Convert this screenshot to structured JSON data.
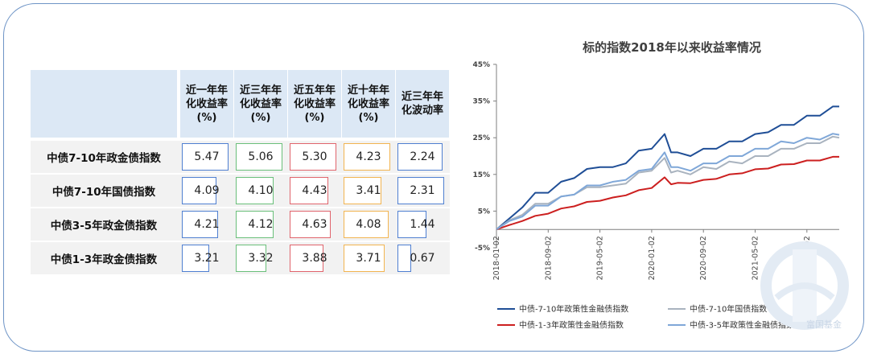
{
  "table": {
    "headers": [
      "近一年年\n化收益率\n(%)",
      "近三年年\n化收益率\n(%)",
      "近五年年\n化收益率\n(%)",
      "近十年年\n化收益率\n(%)",
      "近三年年\n化波动率"
    ],
    "column_colors": [
      "#4f7fd1",
      "#6abf7a",
      "#e0646c",
      "#f2b450",
      "#4f7fd1"
    ],
    "rows": [
      {
        "name": "中债7-10年政金债指数",
        "values": [
          "5.47",
          "5.06",
          "5.30",
          "4.23",
          "2.24"
        ]
      },
      {
        "name": "中债7-10年国债指数",
        "values": [
          "4.09",
          "4.10",
          "4.43",
          "3.41",
          "2.31"
        ]
      },
      {
        "name": "中债3-5年政金债指数",
        "values": [
          "4.21",
          "4.12",
          "4.63",
          "4.08",
          "1.44"
        ]
      },
      {
        "name": "中债1-3年政金债指数",
        "values": [
          "3.21",
          "3.32",
          "3.88",
          "3.71",
          "0.67"
        ]
      }
    ]
  },
  "chart_data": {
    "type": "line",
    "title": "标的指数2018年以来收益率情况",
    "y_ticks": [
      "-5%",
      "5%",
      "15%",
      "25%",
      "35%",
      "45%"
    ],
    "ylim": [
      -5,
      45
    ],
    "x_ticks": [
      "2018-01-02",
      "2018-09-02",
      "2019-05-02",
      "2020-01-02",
      "2020-09-02",
      "2021-05-02",
      "2022-01-02"
    ],
    "x_tick_months": [
      0,
      8,
      16,
      24,
      32,
      40,
      48
    ],
    "x_end_month": 53,
    "grid": false,
    "legend_position": "bottom",
    "series": [
      {
        "name": "中债-7-10年政策性金融债指数",
        "color": "#1f4e96",
        "x_months": [
          0,
          2,
          4,
          6,
          8,
          10,
          12,
          14,
          16,
          18,
          20,
          22,
          24,
          26,
          27,
          28,
          30,
          32,
          34,
          36,
          38,
          40,
          42,
          44,
          46,
          48,
          50,
          52,
          53
        ],
        "values": [
          0,
          2.5,
          6.5,
          9.5,
          10.5,
          12.5,
          14.5,
          16,
          17.5,
          16.5,
          18.5,
          21,
          22.5,
          25.5,
          21.5,
          20.5,
          20.5,
          21.5,
          22.5,
          23.5,
          24.5,
          25.5,
          27,
          28,
          29,
          30.5,
          31.5,
          33,
          33.5
        ]
      },
      {
        "name": "中债-7-10年国债指数",
        "color": "#a9b3bf",
        "x_months": [
          0,
          2,
          4,
          6,
          8,
          10,
          12,
          14,
          16,
          18,
          20,
          22,
          24,
          26,
          27,
          28,
          30,
          32,
          34,
          36,
          38,
          40,
          42,
          44,
          46,
          48,
          50,
          52,
          53
        ],
        "values": [
          0,
          2,
          4.5,
          6.5,
          7.5,
          8.5,
          10,
          11,
          12,
          11.5,
          13,
          15,
          16.5,
          19,
          16,
          15.5,
          15.5,
          16.5,
          17,
          18,
          18.5,
          19.5,
          20.5,
          21.5,
          22.5,
          23,
          24,
          24.8,
          25
        ]
      },
      {
        "name": "中债-1-3年政策性金融债指数",
        "color": "#cc1f1f",
        "x_months": [
          0,
          2,
          4,
          6,
          8,
          10,
          12,
          14,
          16,
          18,
          20,
          22,
          24,
          26,
          27,
          28,
          30,
          32,
          34,
          36,
          38,
          40,
          42,
          44,
          46,
          48,
          50,
          52,
          53
        ],
        "values": [
          0,
          1,
          2.5,
          3.5,
          4.5,
          5.5,
          6.5,
          7.3,
          8,
          8.5,
          9.5,
          10.5,
          11.5,
          14,
          12.5,
          12.5,
          12.8,
          13.3,
          14,
          14.8,
          15.5,
          16.2,
          16.8,
          17.5,
          18,
          18.6,
          19,
          19.6,
          19.8
        ]
      },
      {
        "name": "中债-3-5年政策性金融债指数",
        "color": "#7fa7d8",
        "x_months": [
          0,
          2,
          4,
          6,
          8,
          10,
          12,
          14,
          16,
          18,
          20,
          22,
          24,
          26,
          27,
          28,
          30,
          32,
          34,
          36,
          38,
          40,
          42,
          44,
          46,
          48,
          50,
          52,
          53
        ],
        "values": [
          0,
          1.8,
          4,
          6,
          7,
          8.5,
          10,
          11.5,
          12.5,
          12.5,
          14,
          15.5,
          17,
          20.5,
          17.5,
          16.5,
          16.5,
          17.5,
          18.5,
          19.5,
          20.5,
          21.5,
          22.5,
          23.5,
          24,
          24.5,
          25,
          25.6,
          25.8
        ]
      }
    ]
  },
  "watermark": {
    "text": "富国基金"
  }
}
